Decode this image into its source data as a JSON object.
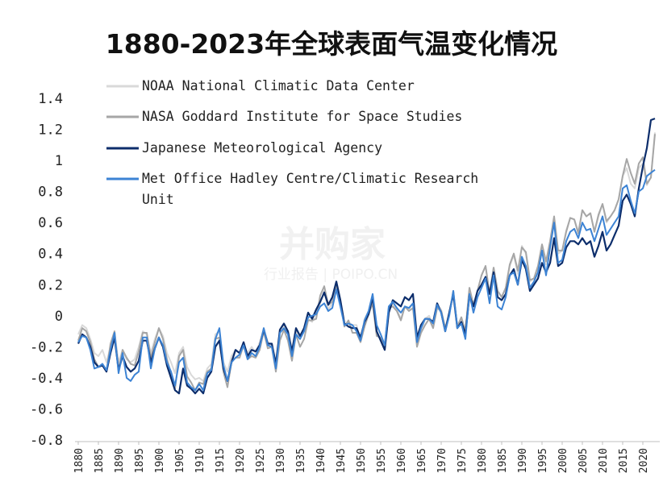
{
  "watermark": {
    "brand": "并购家",
    "subtitle": "行业报告 | POIPO.CN"
  },
  "chart_data": {
    "type": "line",
    "title": "1880-2023年全球表面气温变化情况",
    "xlabel": "",
    "ylabel": "",
    "xlim": [
      1880,
      2023
    ],
    "ylim": [
      -0.8,
      1.4
    ],
    "yticks": [
      "1.4",
      "1.2",
      "1",
      "0.8",
      "0.6",
      "0.4",
      "0.2",
      "0",
      "-0.2",
      "-0.4",
      "-0.6",
      "-0.8"
    ],
    "ytick_values": [
      1.4,
      1.2,
      1,
      0.8,
      0.6,
      0.4,
      0.2,
      0,
      -0.2,
      -0.4,
      -0.6,
      -0.8
    ],
    "xticks": [
      1880,
      1885,
      1890,
      1895,
      1900,
      1905,
      1910,
      1915,
      1920,
      1925,
      1930,
      1935,
      1940,
      1945,
      1950,
      1955,
      1960,
      1965,
      1970,
      1975,
      1980,
      1985,
      1990,
      1995,
      2000,
      2005,
      2010,
      2015,
      2020
    ],
    "legend_position": "top-left",
    "grid": false,
    "x": [
      1880,
      1881,
      1882,
      1883,
      1884,
      1885,
      1886,
      1887,
      1888,
      1889,
      1890,
      1891,
      1892,
      1893,
      1894,
      1895,
      1896,
      1897,
      1898,
      1899,
      1900,
      1901,
      1902,
      1903,
      1904,
      1905,
      1906,
      1907,
      1908,
      1909,
      1910,
      1911,
      1912,
      1913,
      1914,
      1915,
      1916,
      1917,
      1918,
      1919,
      1920,
      1921,
      1922,
      1923,
      1924,
      1925,
      1926,
      1927,
      1928,
      1929,
      1930,
      1931,
      1932,
      1933,
      1934,
      1935,
      1936,
      1937,
      1938,
      1939,
      1940,
      1941,
      1942,
      1943,
      1944,
      1945,
      1946,
      1947,
      1948,
      1949,
      1950,
      1951,
      1952,
      1953,
      1954,
      1955,
      1956,
      1957,
      1958,
      1959,
      1960,
      1961,
      1962,
      1963,
      1964,
      1965,
      1966,
      1967,
      1968,
      1969,
      1970,
      1971,
      1972,
      1973,
      1974,
      1975,
      1976,
      1977,
      1978,
      1979,
      1980,
      1981,
      1982,
      1983,
      1984,
      1985,
      1986,
      1987,
      1988,
      1989,
      1990,
      1991,
      1992,
      1993,
      1994,
      1995,
      1996,
      1997,
      1998,
      1999,
      2000,
      2001,
      2002,
      2003,
      2004,
      2005,
      2006,
      2007,
      2008,
      2009,
      2010,
      2011,
      2012,
      2013,
      2014,
      2015,
      2016,
      2017,
      2018,
      2019,
      2020,
      2021,
      2022,
      2023
    ],
    "series": [
      {
        "name": "NOAA National Climatic Data Center",
        "color": "#d9d9d9",
        "values": [
          -0.12,
          -0.06,
          -0.08,
          -0.15,
          -0.24,
          -0.26,
          -0.22,
          -0.3,
          -0.2,
          -0.11,
          -0.3,
          -0.22,
          -0.28,
          -0.3,
          -0.28,
          -0.2,
          -0.1,
          -0.12,
          -0.24,
          -0.15,
          -0.08,
          -0.13,
          -0.24,
          -0.3,
          -0.37,
          -0.24,
          -0.2,
          -0.33,
          -0.38,
          -0.41,
          -0.4,
          -0.42,
          -0.34,
          -0.31,
          -0.12,
          -0.1,
          -0.3,
          -0.36,
          -0.26,
          -0.22,
          -0.24,
          -0.18,
          -0.24,
          -0.2,
          -0.24,
          -0.17,
          -0.08,
          -0.17,
          -0.19,
          -0.3,
          -0.1,
          -0.06,
          -0.11,
          -0.23,
          -0.1,
          -0.15,
          -0.1,
          -0.02,
          -0.04,
          0.02,
          0.08,
          0.16,
          0.04,
          0.08,
          0.2,
          0.1,
          -0.06,
          -0.04,
          -0.06,
          -0.06,
          -0.16,
          -0.02,
          0.03,
          0.1,
          -0.1,
          -0.16,
          -0.2,
          0.04,
          0.08,
          0.04,
          -0.02,
          0.06,
          0.04,
          0.08,
          -0.18,
          -0.1,
          -0.02,
          0,
          -0.06,
          0.07,
          0.04,
          -0.08,
          0.02,
          0.16,
          -0.08,
          -0.02,
          -0.1,
          0.17,
          0.06,
          0.16,
          0.26,
          0.32,
          0.14,
          0.31,
          0.16,
          0.12,
          0.18,
          0.32,
          0.39,
          0.27,
          0.45,
          0.4,
          0.22,
          0.24,
          0.31,
          0.45,
          0.33,
          0.46,
          0.62,
          0.4,
          0.42,
          0.55,
          0.63,
          0.62,
          0.54,
          0.68,
          0.64,
          0.66,
          0.54,
          0.64,
          0.72,
          0.6,
          0.64,
          0.68,
          0.75,
          0.9,
          0.95,
          0.85,
          0.82,
          0.95,
          0.98,
          0.84,
          0.89,
          1.18
        ]
      },
      {
        "name": "NASA Goddard Institute for Space Studies",
        "color": "#a6a6a6",
        "values": [
          -0.16,
          -0.08,
          -0.1,
          -0.17,
          -0.28,
          -0.33,
          -0.31,
          -0.36,
          -0.18,
          -0.1,
          -0.35,
          -0.22,
          -0.27,
          -0.31,
          -0.32,
          -0.23,
          -0.11,
          -0.11,
          -0.27,
          -0.17,
          -0.08,
          -0.15,
          -0.28,
          -0.37,
          -0.47,
          -0.26,
          -0.22,
          -0.39,
          -0.43,
          -0.48,
          -0.43,
          -0.44,
          -0.36,
          -0.34,
          -0.15,
          -0.14,
          -0.36,
          -0.46,
          -0.3,
          -0.27,
          -0.27,
          -0.19,
          -0.28,
          -0.26,
          -0.27,
          -0.22,
          -0.1,
          -0.21,
          -0.2,
          -0.36,
          -0.16,
          -0.09,
          -0.16,
          -0.29,
          -0.12,
          -0.2,
          -0.15,
          -0.03,
          -0.03,
          -0.02,
          0.13,
          0.19,
          0.07,
          0.09,
          0.2,
          0.09,
          -0.07,
          -0.03,
          -0.11,
          -0.11,
          -0.17,
          -0.07,
          0.01,
          0.08,
          -0.13,
          -0.14,
          -0.19,
          0.05,
          0.06,
          0.03,
          -0.03,
          0.06,
          0.03,
          0.05,
          -0.2,
          -0.11,
          -0.06,
          -0.02,
          -0.08,
          0.05,
          0.03,
          -0.08,
          0.01,
          0.16,
          -0.07,
          -0.01,
          -0.1,
          0.18,
          0.07,
          0.16,
          0.26,
          0.32,
          0.14,
          0.31,
          0.16,
          0.12,
          0.18,
          0.33,
          0.4,
          0.29,
          0.44,
          0.41,
          0.23,
          0.24,
          0.32,
          0.46,
          0.35,
          0.48,
          0.64,
          0.42,
          0.42,
          0.54,
          0.63,
          0.62,
          0.53,
          0.68,
          0.64,
          0.66,
          0.54,
          0.65,
          0.72,
          0.61,
          0.64,
          0.68,
          0.75,
          0.9,
          1.01,
          0.92,
          0.85,
          0.98,
          1.02,
          0.85,
          0.89,
          1.17
        ]
      },
      {
        "name": "Japanese Meteorological Agency",
        "color": "#0c2d6b",
        "values": [
          -0.18,
          -0.12,
          -0.14,
          -0.2,
          -0.3,
          -0.33,
          -0.32,
          -0.36,
          -0.24,
          -0.14,
          -0.35,
          -0.26,
          -0.33,
          -0.36,
          -0.34,
          -0.29,
          -0.16,
          -0.16,
          -0.3,
          -0.21,
          -0.14,
          -0.2,
          -0.32,
          -0.4,
          -0.48,
          -0.5,
          -0.34,
          -0.45,
          -0.47,
          -0.5,
          -0.47,
          -0.5,
          -0.4,
          -0.36,
          -0.2,
          -0.16,
          -0.34,
          -0.42,
          -0.3,
          -0.22,
          -0.24,
          -0.17,
          -0.26,
          -0.22,
          -0.23,
          -0.19,
          -0.09,
          -0.18,
          -0.18,
          -0.31,
          -0.09,
          -0.05,
          -0.1,
          -0.23,
          -0.08,
          -0.13,
          -0.08,
          0.02,
          -0.02,
          0.04,
          0.09,
          0.15,
          0.07,
          0.12,
          0.22,
          0.1,
          -0.05,
          -0.07,
          -0.08,
          -0.08,
          -0.14,
          -0.04,
          0.01,
          0.12,
          -0.1,
          -0.16,
          -0.22,
          0.02,
          0.1,
          0.08,
          0.06,
          0.12,
          0.1,
          0.14,
          -0.14,
          -0.06,
          -0.02,
          -0.02,
          -0.04,
          0.08,
          0.02,
          -0.1,
          0.02,
          0.14,
          -0.08,
          -0.04,
          -0.12,
          0.13,
          0.06,
          0.16,
          0.2,
          0.25,
          0.14,
          0.28,
          0.12,
          0.1,
          0.14,
          0.26,
          0.3,
          0.2,
          0.36,
          0.3,
          0.16,
          0.2,
          0.24,
          0.34,
          0.28,
          0.34,
          0.5,
          0.32,
          0.34,
          0.44,
          0.48,
          0.48,
          0.46,
          0.5,
          0.46,
          0.48,
          0.38,
          0.45,
          0.54,
          0.42,
          0.46,
          0.52,
          0.58,
          0.74,
          0.78,
          0.72,
          0.64,
          0.82,
          0.96,
          1.08,
          1.26,
          1.27
        ]
      },
      {
        "name": "Met Office Hadley Centre/Climatic Research Unit",
        "color": "#3c83d4",
        "values": [
          -0.17,
          -0.13,
          -0.14,
          -0.22,
          -0.34,
          -0.33,
          -0.31,
          -0.35,
          -0.22,
          -0.11,
          -0.37,
          -0.24,
          -0.4,
          -0.42,
          -0.38,
          -0.36,
          -0.14,
          -0.14,
          -0.34,
          -0.21,
          -0.14,
          -0.19,
          -0.3,
          -0.36,
          -0.45,
          -0.3,
          -0.27,
          -0.43,
          -0.46,
          -0.48,
          -0.44,
          -0.48,
          -0.37,
          -0.35,
          -0.15,
          -0.08,
          -0.32,
          -0.42,
          -0.3,
          -0.27,
          -0.25,
          -0.19,
          -0.28,
          -0.24,
          -0.26,
          -0.2,
          -0.08,
          -0.19,
          -0.2,
          -0.34,
          -0.11,
          -0.08,
          -0.12,
          -0.26,
          -0.12,
          -0.15,
          -0.1,
          -0.01,
          0,
          0.01,
          0.06,
          0.08,
          0.03,
          0.05,
          0.17,
          0.06,
          -0.06,
          -0.05,
          -0.06,
          -0.1,
          -0.16,
          -0.03,
          0.03,
          0.14,
          -0.06,
          -0.12,
          -0.19,
          0.06,
          0.09,
          0.05,
          0.02,
          0.06,
          0.05,
          0.08,
          -0.17,
          -0.08,
          -0.02,
          -0.02,
          -0.05,
          0.07,
          0.02,
          -0.1,
          0,
          0.16,
          -0.08,
          -0.05,
          -0.15,
          0.14,
          0.02,
          0.12,
          0.18,
          0.24,
          0.08,
          0.26,
          0.06,
          0.04,
          0.12,
          0.26,
          0.28,
          0.2,
          0.38,
          0.32,
          0.18,
          0.22,
          0.28,
          0.42,
          0.26,
          0.44,
          0.6,
          0.34,
          0.36,
          0.48,
          0.54,
          0.56,
          0.5,
          0.6,
          0.55,
          0.56,
          0.48,
          0.56,
          0.64,
          0.52,
          0.56,
          0.6,
          0.64,
          0.82,
          0.84,
          0.74,
          0.66,
          0.8,
          0.82,
          0.9,
          0.92,
          0.94
        ]
      }
    ]
  }
}
